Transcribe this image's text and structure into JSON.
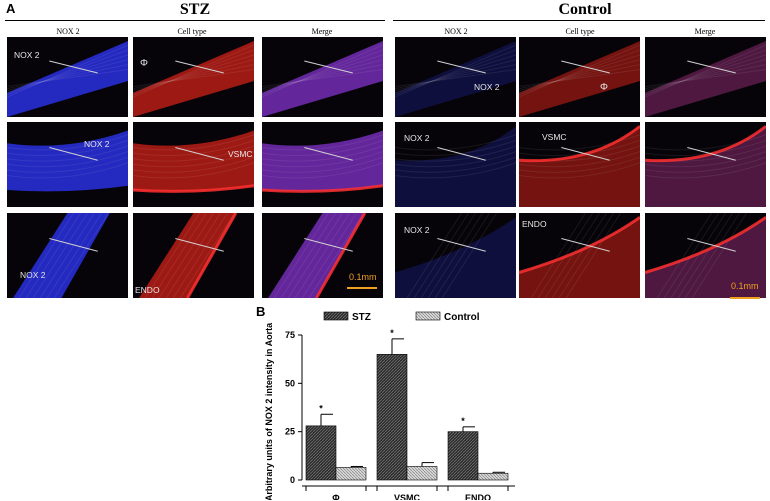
{
  "panel_a": {
    "letter": "A",
    "groups": {
      "stz": {
        "title": "STZ",
        "col_headers": [
          "NOX 2",
          "Cell type",
          "Merge"
        ]
      },
      "control": {
        "title": "Control",
        "col_headers": [
          "NOX 2",
          "Cell type",
          "Merge"
        ]
      }
    },
    "labels": {
      "stz": {
        "r1c1": "NOX 2",
        "r1c2": "Φ",
        "r2c1": "NOX 2",
        "r2c2": "VSMC",
        "r3c1": "NOX 2",
        "r3c2": "ENDO"
      },
      "control": {
        "r1c1": "NOX 2",
        "r1c2": "Φ",
        "r2c1": "NOX 2",
        "r2c2": "VSMC",
        "r3c1": "NOX 2",
        "r3c2": "ENDO"
      }
    },
    "scale_bar": "0.1mm",
    "colors": {
      "blue_channel": "#2a2ad8",
      "red_channel": "#d82020",
      "merge": "#7a2aa0"
    }
  },
  "panel_b": {
    "letter": "B",
    "chart_data": {
      "type": "bar",
      "categories": [
        "Φ",
        "VSMC",
        "ENDO"
      ],
      "series": [
        {
          "name": "STZ",
          "values": [
            28,
            65,
            25
          ],
          "errors": [
            6,
            8,
            2.5
          ]
        },
        {
          "name": "Control",
          "values": [
            6.5,
            7,
            3.5
          ],
          "errors": [
            0.5,
            2,
            0.5
          ]
        }
      ],
      "ylabel": "Arbitrary units of NOX 2 intensity in Aorta",
      "ylim": [
        0,
        75
      ],
      "yticks": [
        "0",
        "25",
        "50",
        "75"
      ],
      "significance": [
        "*",
        "*",
        "*"
      ],
      "legend_placement": "top"
    }
  }
}
